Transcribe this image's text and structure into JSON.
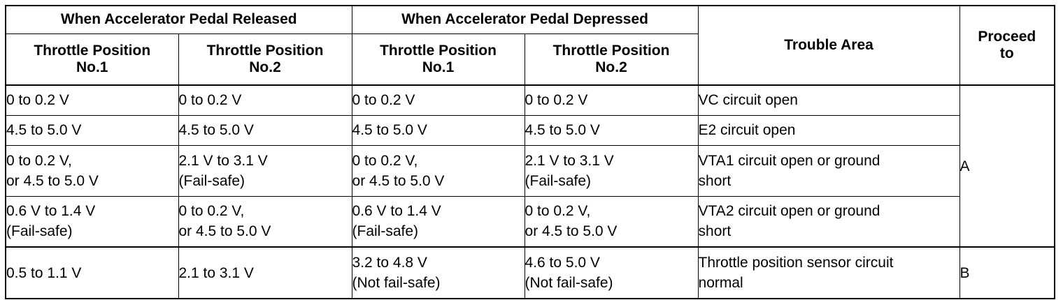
{
  "header": {
    "released": "When Accelerator Pedal Released",
    "depressed": "When Accelerator Pedal Depressed",
    "sub": [
      [
        "Throttle Position",
        "No.1"
      ],
      [
        "Throttle Position",
        "No.2"
      ],
      [
        "Throttle Position",
        "No.1"
      ],
      [
        "Throttle Position",
        "No.2"
      ]
    ],
    "trouble_area": "Trouble Area",
    "proceed": [
      "Proceed",
      "to"
    ]
  },
  "rows": [
    {
      "c1": [
        "0 to 0.2 V"
      ],
      "c2": [
        "0 to 0.2 V"
      ],
      "c3": [
        "0 to 0.2 V"
      ],
      "c4": [
        "0 to 0.2 V"
      ],
      "area": [
        "VC circuit open"
      ]
    },
    {
      "c1": [
        "4.5 to 5.0 V"
      ],
      "c2": [
        "4.5 to 5.0 V"
      ],
      "c3": [
        "4.5 to 5.0 V"
      ],
      "c4": [
        "4.5 to 5.0 V"
      ],
      "area": [
        "E2 circuit open"
      ]
    },
    {
      "c1": [
        "0 to 0.2 V,",
        "or 4.5 to 5.0 V"
      ],
      "c2": [
        "2.1 V to 3.1 V",
        "(Fail-safe)"
      ],
      "c3": [
        "0 to 0.2 V,",
        "or 4.5 to 5.0 V"
      ],
      "c4": [
        "2.1 V to 3.1 V",
        "(Fail-safe)"
      ],
      "area": [
        "VTA1 circuit open or ground",
        "short"
      ]
    },
    {
      "c1": [
        "0.6 V to 1.4 V",
        "(Fail-safe)"
      ],
      "c2": [
        "0 to 0.2 V,",
        "or 4.5 to 5.0 V"
      ],
      "c3": [
        "0.6 V to 1.4 V",
        "(Fail-safe)"
      ],
      "c4": [
        "0 to 0.2 V,",
        "or 4.5 to 5.0 V"
      ],
      "area": [
        "VTA2 circuit open or ground",
        "short"
      ]
    },
    {
      "c1": [
        "0.5 to 1.1 V"
      ],
      "c2": [
        "2.1 to 3.1 V"
      ],
      "c3": [
        "3.2 to 4.8 V",
        "(Not fail-safe)"
      ],
      "c4": [
        "4.6 to 5.0 V",
        "(Not fail-safe)"
      ],
      "area": [
        "Throttle position sensor circuit",
        "normal"
      ]
    }
  ],
  "proceed_values": [
    "A",
    "B"
  ]
}
